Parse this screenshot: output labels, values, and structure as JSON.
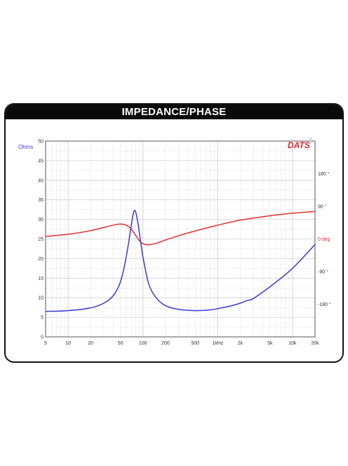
{
  "title": "IMPEDANCE/PHASE",
  "logo": {
    "text": "DATS",
    "superscript": "V2",
    "color": "#e0202a"
  },
  "colors": {
    "impedance": "#3a3ad8",
    "phase": "#e53030",
    "grid": "#cfcfcf",
    "frame": "#111111"
  },
  "chart_data": {
    "type": "line",
    "title": "IMPEDANCE/PHASE",
    "x_scale": "log",
    "xlim": [
      5,
      20000
    ],
    "x_ticks": [
      5,
      10,
      20,
      50,
      100,
      200,
      500,
      1000,
      2000,
      5000,
      10000,
      20000
    ],
    "x_tick_labels": [
      "5",
      "10",
      "20",
      "50",
      "100",
      "200",
      "500",
      "1kHz",
      "2k",
      "5k",
      "10k",
      "20k"
    ],
    "left_axis": {
      "label": "Ohms",
      "ylim": [
        0,
        50
      ],
      "ticks": [
        0,
        5,
        10,
        15,
        20,
        25,
        30,
        35,
        40,
        45,
        50
      ],
      "tick_labels": [
        "0",
        "5",
        "10",
        "15",
        "20",
        "25",
        "30",
        "35",
        "40",
        "45",
        "50"
      ]
    },
    "right_axis": {
      "ylim": [
        -270,
        270
      ],
      "ticks": [
        180,
        90,
        0,
        -90,
        -180
      ],
      "tick_labels": [
        "180 °",
        "90 °",
        "0 deg",
        "-90 °",
        "-180 °"
      ]
    },
    "grid": true,
    "series": [
      {
        "axis": "left",
        "color": "#3a3ad8",
        "points": [
          [
            5,
            6.5
          ],
          [
            10,
            6.7
          ],
          [
            20,
            7.4
          ],
          [
            30,
            8.6
          ],
          [
            40,
            10.5
          ],
          [
            50,
            14.0
          ],
          [
            60,
            20.5
          ],
          [
            70,
            28.5
          ],
          [
            77,
            32.3
          ],
          [
            85,
            29.5
          ],
          [
            100,
            20.5
          ],
          [
            120,
            13.5
          ],
          [
            150,
            10.0
          ],
          [
            200,
            8.0
          ],
          [
            300,
            7.0
          ],
          [
            500,
            6.7
          ],
          [
            800,
            6.9
          ],
          [
            1000,
            7.2
          ],
          [
            1500,
            7.9
          ],
          [
            2000,
            8.6
          ],
          [
            2500,
            9.3
          ],
          [
            3000,
            9.8
          ],
          [
            5000,
            12.8
          ],
          [
            10000,
            17.5
          ],
          [
            20000,
            23.6
          ]
        ]
      },
      {
        "axis": "right",
        "color": "#e53030",
        "points": [
          [
            5,
            7
          ],
          [
            10,
            13
          ],
          [
            20,
            23
          ],
          [
            30,
            32
          ],
          [
            40,
            38
          ],
          [
            50,
            41
          ],
          [
            60,
            38
          ],
          [
            70,
            27
          ],
          [
            80,
            10
          ],
          [
            90,
            -5
          ],
          [
            100,
            -13
          ],
          [
            120,
            -16
          ],
          [
            150,
            -12
          ],
          [
            200,
            -3
          ],
          [
            300,
            9
          ],
          [
            500,
            22
          ],
          [
            1000,
            38
          ],
          [
            2000,
            52
          ],
          [
            5000,
            64
          ],
          [
            10000,
            71
          ],
          [
            20000,
            76
          ]
        ]
      }
    ]
  }
}
